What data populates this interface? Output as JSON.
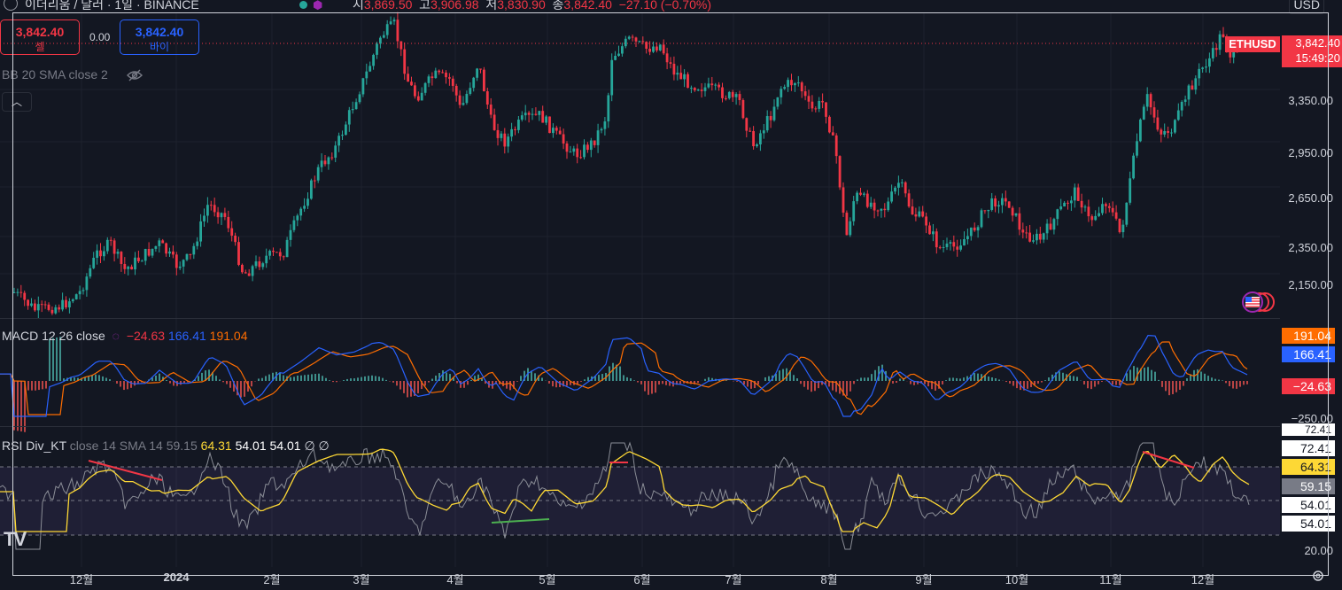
{
  "header": {
    "symbol_title": "이더리움 / 달러 · 1일 · BINANCE",
    "ohlc": [
      {
        "k": "시",
        "v": "3,869.50"
      },
      {
        "k": "고",
        "v": "3,906.98"
      },
      {
        "k": "저",
        "v": "3,830.90"
      },
      {
        "k": "종",
        "v": "3,842.40"
      }
    ],
    "change": "−27.10 (−0.70%)",
    "currency": "USD",
    "logo_icon": "ethereum-logo-icon"
  },
  "trade": {
    "sell_price": "3,842.40",
    "sell_label": "셀",
    "spread": "0.00",
    "buy_price": "3,842.40",
    "buy_label": "바이"
  },
  "bb_legend": "BB 20 SMA close 2",
  "collapse_icon": "chevron-up-icon",
  "price_axis": {
    "labels": [
      "3,350.00",
      "2,950.00",
      "2,650.00",
      "2,350.00",
      "2,150.00"
    ],
    "symbol_tag": "ETHUSD",
    "last_price": "3,842.40",
    "countdown": "15:49:20"
  },
  "macd": {
    "legend_name": "MACD",
    "legend_params": "12 26 close",
    "hist": "−24.63",
    "macd": "166.41",
    "signal": "191.04",
    "axis_low": "−250.00"
  },
  "rsi": {
    "legend_name": "RSI Div_KT",
    "legend_params": "close 14 SMA 14",
    "v1": "59.15",
    "v2": "64.31",
    "v3": "54.01",
    "v4": "54.01",
    "v5": "∅ ∅",
    "axis": [
      "72.41",
      "72.41",
      "64.31",
      "59.15",
      "54.01",
      "54.01",
      "20.00"
    ]
  },
  "time_axis": [
    "12월",
    "2024",
    "2월",
    "3월",
    "4월",
    "5월",
    "6월",
    "7월",
    "8월",
    "9월",
    "10월",
    "11월",
    "12월"
  ],
  "colors": {
    "up": "#26a69a",
    "down": "#f23645",
    "macd": "#2962ff",
    "signal": "#ff6d00",
    "rsi": "#b2b5be",
    "rsi_ma": "#fdd835"
  }
}
